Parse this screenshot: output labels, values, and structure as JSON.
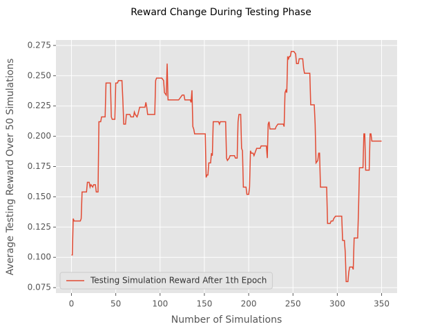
{
  "chart_data": {
    "type": "line",
    "title": "Reward Change During Testing Phase",
    "x_label": "Number of Simulations",
    "y_label": "Average Testing Reward Over 50 Simulations",
    "xlim": [
      -17.5,
      367.5
    ],
    "xticks": [
      0,
      50,
      100,
      150,
      200,
      250,
      300,
      350
    ],
    "ylim": [
      0.0705,
      0.2795
    ],
    "yticks": [
      0.075,
      {
        "value": 0.1,
        "label": "0.100"
      },
      0.125,
      {
        "value": 0.15,
        "label": "0.150"
      },
      0.175,
      {
        "value": 0.2,
        "label": "0.200"
      },
      0.225,
      {
        "value": 0.25,
        "label": "0.250"
      },
      0.275
    ],
    "grid": true,
    "legend_loc": "lower left",
    "series": [
      {
        "name": "Testing Simulation Reward After 1th Epoch",
        "color": "#e24a33",
        "x": [
          0,
          1,
          2,
          3,
          10,
          11,
          12,
          17,
          18,
          20,
          21,
          22,
          24,
          25,
          27,
          28,
          30,
          31,
          33,
          34,
          38,
          39,
          44,
          45,
          46,
          49,
          50,
          52,
          53,
          57,
          58,
          59,
          61,
          62,
          66,
          67,
          70,
          71,
          72,
          74,
          75,
          77,
          83,
          84,
          85,
          86,
          94,
          95,
          96,
          102,
          104,
          105,
          107,
          108,
          109,
          121,
          123,
          125,
          127,
          128,
          134,
          135,
          136,
          137,
          138,
          139,
          151,
          152,
          153,
          154,
          155,
          157,
          158,
          159,
          160,
          166,
          167,
          168,
          174,
          175,
          176,
          178,
          179,
          184,
          185,
          187,
          188,
          189,
          191,
          192,
          193,
          194,
          197,
          198,
          200,
          201,
          202,
          203,
          205,
          206,
          208,
          209,
          213,
          214,
          220,
          221,
          222,
          223,
          224,
          230,
          231,
          233,
          239,
          240,
          241,
          242,
          243,
          244,
          245,
          246,
          247,
          248,
          251,
          253,
          254,
          256,
          257,
          261,
          262,
          263,
          269,
          270,
          274,
          275,
          276,
          278,
          279,
          280,
          281,
          288,
          289,
          292,
          293,
          295,
          296,
          298,
          305,
          306,
          308,
          309,
          310,
          312,
          313,
          314,
          317,
          318,
          319,
          323,
          324,
          325,
          329,
          330,
          331,
          332,
          336,
          337,
          338,
          339,
          350
        ],
        "values": [
          0.102,
          0.102,
          0.132,
          0.13,
          0.13,
          0.132,
          0.154,
          0.154,
          0.162,
          0.162,
          0.158,
          0.16,
          0.158,
          0.16,
          0.16,
          0.154,
          0.154,
          0.212,
          0.212,
          0.216,
          0.216,
          0.244,
          0.244,
          0.216,
          0.214,
          0.214,
          0.244,
          0.244,
          0.246,
          0.246,
          0.23,
          0.21,
          0.21,
          0.218,
          0.218,
          0.216,
          0.216,
          0.22,
          0.218,
          0.216,
          0.218,
          0.224,
          0.224,
          0.228,
          0.224,
          0.218,
          0.218,
          0.246,
          0.248,
          0.248,
          0.246,
          0.236,
          0.234,
          0.26,
          0.23,
          0.23,
          0.232,
          0.234,
          0.234,
          0.23,
          0.23,
          0.228,
          0.238,
          0.208,
          0.206,
          0.202,
          0.202,
          0.166,
          0.168,
          0.168,
          0.178,
          0.178,
          0.186,
          0.184,
          0.212,
          0.212,
          0.21,
          0.212,
          0.212,
          0.182,
          0.18,
          0.182,
          0.184,
          0.184,
          0.182,
          0.182,
          0.212,
          0.218,
          0.218,
          0.19,
          0.188,
          0.158,
          0.158,
          0.152,
          0.152,
          0.158,
          0.188,
          0.186,
          0.186,
          0.184,
          0.188,
          0.19,
          0.19,
          0.192,
          0.192,
          0.182,
          0.21,
          0.212,
          0.206,
          0.206,
          0.208,
          0.21,
          0.21,
          0.208,
          0.236,
          0.238,
          0.236,
          0.266,
          0.264,
          0.266,
          0.266,
          0.27,
          0.27,
          0.268,
          0.26,
          0.26,
          0.264,
          0.264,
          0.256,
          0.252,
          0.252,
          0.226,
          0.226,
          0.21,
          0.178,
          0.18,
          0.186,
          0.186,
          0.158,
          0.158,
          0.128,
          0.128,
          0.13,
          0.13,
          0.132,
          0.134,
          0.134,
          0.114,
          0.114,
          0.104,
          0.08,
          0.08,
          0.088,
          0.092,
          0.092,
          0.09,
          0.116,
          0.116,
          0.14,
          0.174,
          0.174,
          0.202,
          0.202,
          0.172,
          0.172,
          0.202,
          0.202,
          0.196,
          0.196
        ]
      }
    ]
  }
}
